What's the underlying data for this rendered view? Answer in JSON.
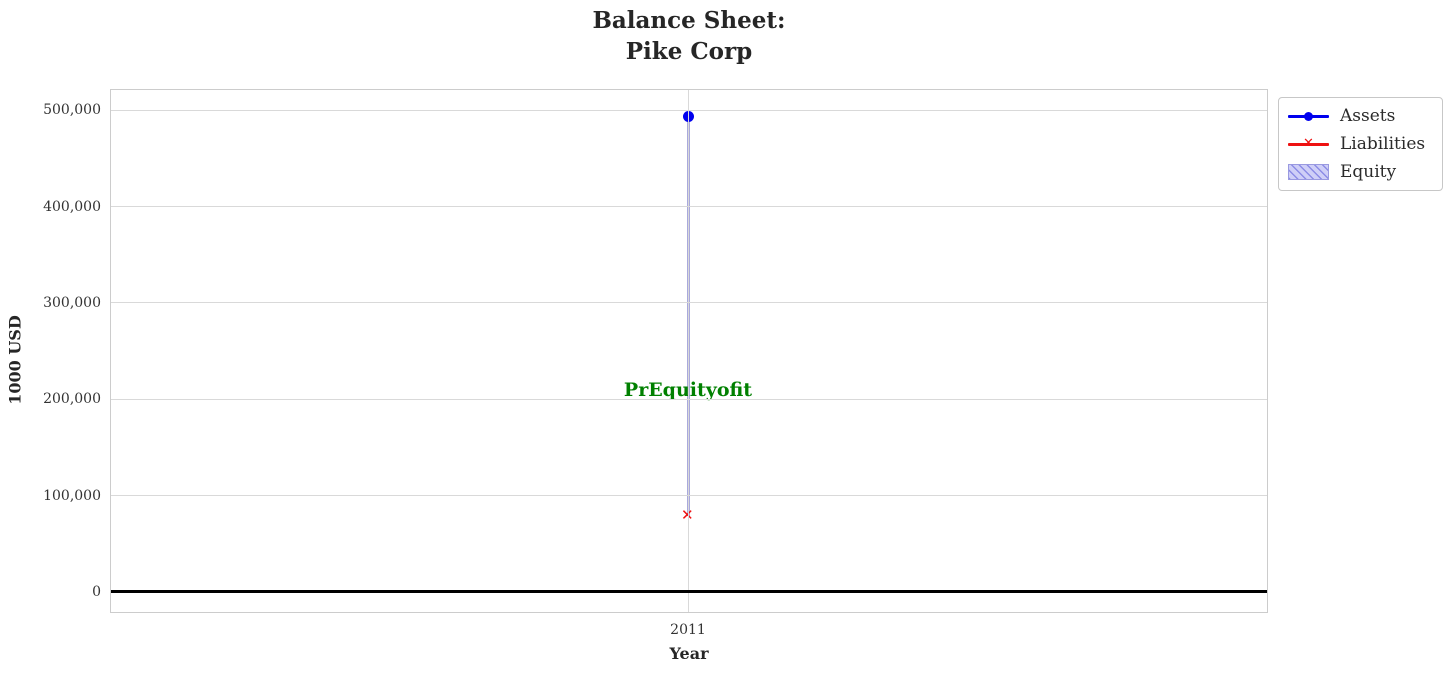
{
  "chart_data": {
    "type": "line",
    "title": "Balance Sheet:\nPike Corp",
    "xlabel": "Year",
    "ylabel": "1000 USD",
    "x": [
      2011
    ],
    "xtick_labels": [
      "2011"
    ],
    "yticks": [
      0,
      100000,
      200000,
      300000,
      400000,
      500000
    ],
    "ytick_labels": [
      "0",
      "100,000",
      "200,000",
      "300,000",
      "400,000",
      "500,000"
    ],
    "ylim": [
      -23000,
      521000
    ],
    "grid": true,
    "zero_line": true,
    "legend_position": "outside-upper-right",
    "series": [
      {
        "name": "Assets",
        "plot": "line",
        "marker": "circle",
        "color": "#0000ee",
        "values": [
          494000
        ]
      },
      {
        "name": "Liabilities",
        "plot": "line",
        "marker": "x",
        "color": "#ee1111",
        "values": [
          79000
        ]
      },
      {
        "name": "Equity",
        "plot": "bar",
        "facecolor": "#ccccf5",
        "hatch": "//",
        "hatch_color": "#8c8ce6",
        "bar_color": "#a9a9dc",
        "bottom": [
          79000
        ],
        "values": [
          415000
        ]
      }
    ],
    "annotation": {
      "text": "PrEquityofit",
      "color": "#008000",
      "x": 2011,
      "y": 210000
    }
  }
}
